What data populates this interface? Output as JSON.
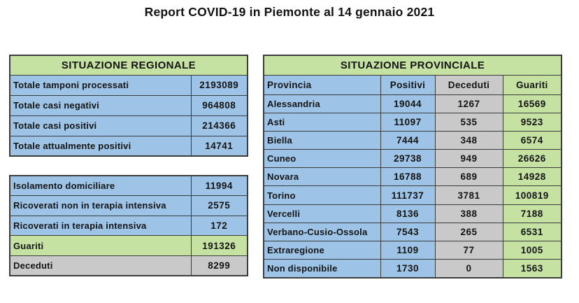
{
  "title": "Report COVID-19 in Piemonte al 14 gennaio 2021",
  "colors": {
    "green": "#c6e2a2",
    "blue": "#9dc3e6",
    "gray": "#c9c9c9",
    "border": "#3c3c3c",
    "text": "#141414"
  },
  "regional": {
    "header": "SITUAZIONE REGIONALE",
    "rows": [
      {
        "label": "Totale tamponi processati",
        "value": "2193089",
        "color": "blue"
      },
      {
        "label": "Totale casi negativi",
        "value": "964808",
        "color": "blue"
      },
      {
        "label": "Totale casi positivi",
        "value": "214366",
        "color": "blue"
      },
      {
        "label": "Totale attualmente positivi",
        "value": "14741",
        "color": "blue"
      }
    ]
  },
  "detail": {
    "rows": [
      {
        "label": "Isolamento domiciliare",
        "value": "11994",
        "color": "blue"
      },
      {
        "label": "Ricoverati non in terapia intensiva",
        "value": "2575",
        "color": "blue"
      },
      {
        "label": "Ricoverati in terapia intensiva",
        "value": "172",
        "color": "blue"
      },
      {
        "label": "Guariti",
        "value": "191326",
        "color": "green"
      },
      {
        "label": "Deceduti",
        "value": "8299",
        "color": "gray"
      }
    ]
  },
  "provincial": {
    "header": "SITUAZIONE PROVINCIALE",
    "columns": [
      {
        "label": "Provincia",
        "color": "blue"
      },
      {
        "label": "Positivi",
        "color": "blue"
      },
      {
        "label": "Deceduti",
        "color": "gray"
      },
      {
        "label": "Guariti",
        "color": "green"
      }
    ],
    "rows": [
      {
        "provincia": "Alessandria",
        "positivi": "19044",
        "deceduti": "1267",
        "guariti": "16569"
      },
      {
        "provincia": "Asti",
        "positivi": "11097",
        "deceduti": "535",
        "guariti": "9523"
      },
      {
        "provincia": "Biella",
        "positivi": "7444",
        "deceduti": "348",
        "guariti": "6574"
      },
      {
        "provincia": "Cuneo",
        "positivi": "29738",
        "deceduti": "949",
        "guariti": "26626"
      },
      {
        "provincia": "Novara",
        "positivi": "16788",
        "deceduti": "689",
        "guariti": "14928"
      },
      {
        "provincia": "Torino",
        "positivi": "111737",
        "deceduti": "3781",
        "guariti": "100819"
      },
      {
        "provincia": "Vercelli",
        "positivi": "8136",
        "deceduti": "388",
        "guariti": "7188"
      },
      {
        "provincia": "Verbano-Cusio-Ossola",
        "positivi": "7543",
        "deceduti": "265",
        "guariti": "6531"
      },
      {
        "provincia": "Extraregione",
        "positivi": "1109",
        "deceduti": "77",
        "guariti": "1005"
      },
      {
        "provincia": "Non disponibile",
        "positivi": "1730",
        "deceduti": "0",
        "guariti": "1563"
      }
    ]
  }
}
